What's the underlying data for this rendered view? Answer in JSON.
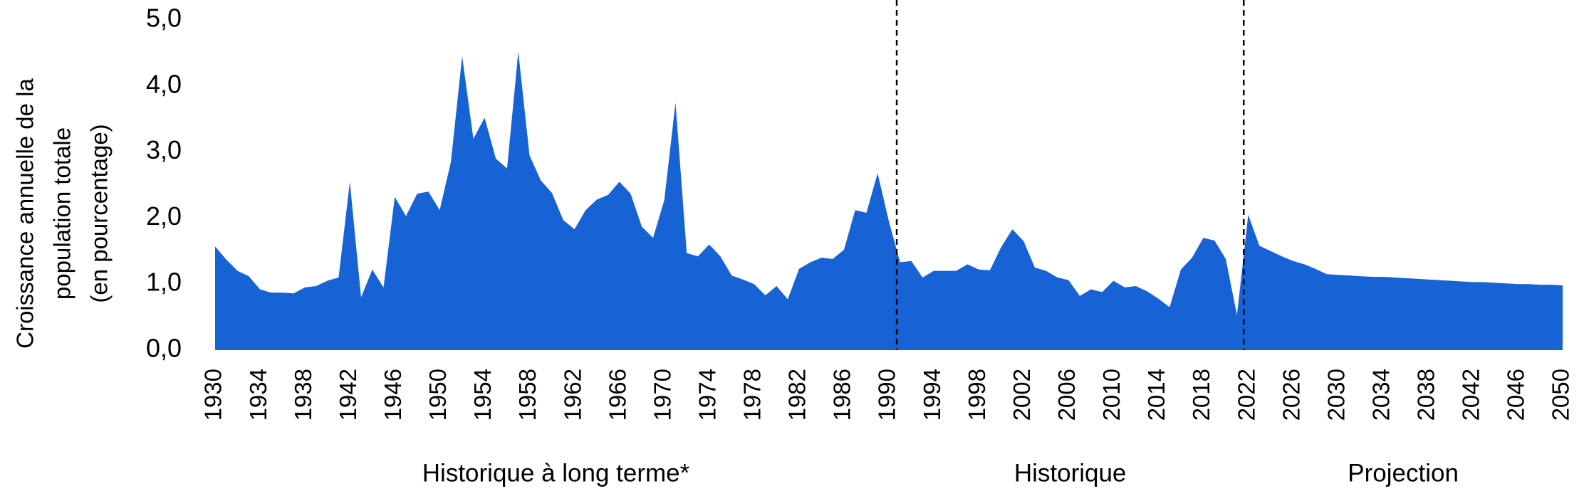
{
  "chart_data": {
    "type": "area",
    "ylabel": [
      "Croissance annuelle de la",
      "population totale",
      "(en pourcentage)"
    ],
    "x": [
      1930,
      1931,
      1932,
      1933,
      1934,
      1935,
      1936,
      1937,
      1938,
      1939,
      1940,
      1941,
      1942,
      1943,
      1944,
      1945,
      1946,
      1947,
      1948,
      1949,
      1950,
      1951,
      1952,
      1953,
      1954,
      1955,
      1956,
      1957,
      1958,
      1959,
      1960,
      1961,
      1962,
      1963,
      1964,
      1965,
      1966,
      1967,
      1968,
      1969,
      1970,
      1971,
      1972,
      1973,
      1974,
      1975,
      1976,
      1977,
      1978,
      1979,
      1980,
      1981,
      1982,
      1983,
      1984,
      1985,
      1986,
      1987,
      1988,
      1989,
      1990,
      1991,
      1992,
      1993,
      1994,
      1995,
      1996,
      1997,
      1998,
      1999,
      2000,
      2001,
      2002,
      2003,
      2004,
      2005,
      2006,
      2007,
      2008,
      2009,
      2010,
      2011,
      2012,
      2013,
      2014,
      2015,
      2016,
      2017,
      2018,
      2019,
      2020,
      2021,
      2022,
      2023,
      2024,
      2025,
      2026,
      2027,
      2028,
      2029,
      2030,
      2031,
      2032,
      2033,
      2034,
      2035,
      2036,
      2037,
      2038,
      2039,
      2040,
      2041,
      2042,
      2043,
      2044,
      2045,
      2046,
      2047,
      2048,
      2049,
      2050
    ],
    "values": [
      1.57,
      1.37,
      1.2,
      1.12,
      0.92,
      0.87,
      0.87,
      0.86,
      0.95,
      0.97,
      1.05,
      1.1,
      2.55,
      0.8,
      1.22,
      0.95,
      2.32,
      2.03,
      2.37,
      2.4,
      2.12,
      2.85,
      4.45,
      3.2,
      3.52,
      2.9,
      2.75,
      4.52,
      2.95,
      2.57,
      2.38,
      1.97,
      1.83,
      2.12,
      2.28,
      2.35,
      2.55,
      2.37,
      1.87,
      1.7,
      2.27,
      3.75,
      1.47,
      1.42,
      1.6,
      1.42,
      1.13,
      1.07,
      1.0,
      0.83,
      0.97,
      0.77,
      1.23,
      1.33,
      1.4,
      1.38,
      1.52,
      2.12,
      2.08,
      2.68,
      1.95,
      1.33,
      1.35,
      1.1,
      1.2,
      1.2,
      1.2,
      1.3,
      1.22,
      1.21,
      1.56,
      1.83,
      1.65,
      1.25,
      1.2,
      1.1,
      1.06,
      0.82,
      0.92,
      0.88,
      1.05,
      0.95,
      0.97,
      0.89,
      0.78,
      0.65,
      1.22,
      1.4,
      1.7,
      1.66,
      1.38,
      0.53,
      2.05,
      1.58,
      1.5,
      1.42,
      1.35,
      1.3,
      1.23,
      1.15,
      1.14,
      1.13,
      1.12,
      1.11,
      1.11,
      1.1,
      1.09,
      1.08,
      1.07,
      1.06,
      1.05,
      1.04,
      1.03,
      1.03,
      1.02,
      1.01,
      1.0,
      1.0,
      0.99,
      0.99,
      0.98
    ],
    "color": "#1763d6",
    "xlim": [
      1930,
      2050
    ],
    "xticks": [
      1930,
      1934,
      1938,
      1942,
      1946,
      1950,
      1954,
      1958,
      1962,
      1966,
      1970,
      1974,
      1978,
      1982,
      1986,
      1990,
      1994,
      1998,
      2002,
      2006,
      2010,
      2014,
      2018,
      2022,
      2026,
      2030,
      2034,
      2038,
      2042,
      2046,
      2050
    ],
    "ylim": [
      0,
      5
    ],
    "yticks": [
      {
        "value": 0,
        "label": "0,0"
      },
      {
        "value": 1,
        "label": "1,0"
      },
      {
        "value": 2,
        "label": "2,0"
      },
      {
        "value": 3,
        "label": "3,0"
      },
      {
        "value": 4,
        "label": "4,0"
      },
      {
        "value": 5,
        "label": "5,0"
      }
    ],
    "dividers": [
      1990.7,
      2021.6
    ],
    "periods": [
      "Historique à long terme*",
      "Historique",
      "Projection"
    ]
  }
}
